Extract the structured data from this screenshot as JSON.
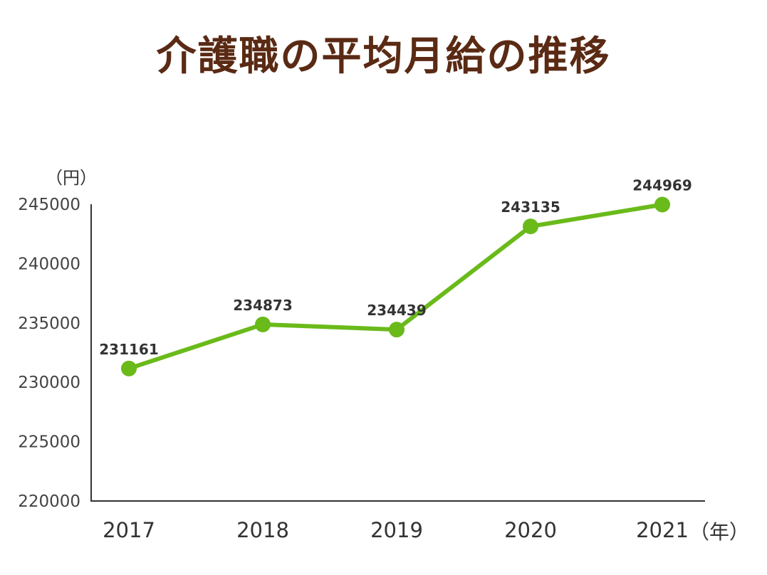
{
  "chart_data": {
    "type": "line",
    "title": "介護職の平均月給の推移",
    "y_unit": "（円）",
    "x_unit": "（年）",
    "categories": [
      "2017",
      "2018",
      "2019",
      "2020",
      "2021"
    ],
    "values": [
      231161,
      234873,
      234439,
      243135,
      244969
    ],
    "data_labels": [
      "231161",
      "234873",
      "234439",
      "243135",
      "244969"
    ],
    "y_ticks": [
      "220000",
      "225000",
      "230000",
      "235000",
      "240000",
      "245000"
    ],
    "ylim": [
      220000,
      245000
    ],
    "grid": false,
    "legend": "none"
  },
  "colors": {
    "title": "#5a2a14",
    "line": "#6aba1a",
    "axis": "#333333"
  }
}
